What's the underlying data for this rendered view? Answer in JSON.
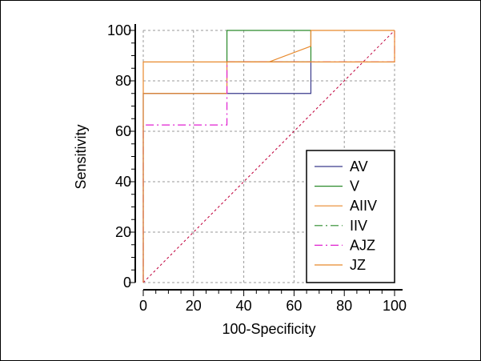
{
  "chart_data": {
    "type": "line",
    "title": "",
    "xlabel": "100-Specificity",
    "ylabel": "Sensitivity",
    "xlim": [
      0,
      100
    ],
    "ylim": [
      0,
      100
    ],
    "xticks": [
      "0",
      "20",
      "40",
      "60",
      "80",
      "100"
    ],
    "yticks": [
      "0",
      "20",
      "40",
      "60",
      "80",
      "100"
    ],
    "grid": true,
    "legend_position": "bottom-right",
    "reference_line": {
      "name": "chance-diagonal",
      "color": "#c0003c",
      "points": [
        [
          0,
          0
        ],
        [
          100,
          100
        ]
      ]
    },
    "series": [
      {
        "name": "AV",
        "color": "#3a3a8c",
        "dash": "solid",
        "points": [
          [
            0,
            0
          ],
          [
            0,
            75
          ],
          [
            33.3,
            75
          ],
          [
            66.7,
            75
          ],
          [
            66.7,
            87.5
          ]
        ]
      },
      {
        "name": "V",
        "color": "#2a8a2a",
        "dash": "solid",
        "points": [
          [
            33.3,
            87.5
          ],
          [
            33.3,
            100
          ],
          [
            66.7,
            100
          ],
          [
            66.7,
            87.5
          ],
          [
            33.3,
            87.5
          ]
        ]
      },
      {
        "name": "AIIV",
        "color": "#e8892c",
        "dash": "solid",
        "points": [
          [
            0,
            75
          ],
          [
            33.3,
            75
          ],
          [
            33.3,
            87.5
          ],
          [
            50,
            87.5
          ],
          [
            66.7,
            93.75
          ],
          [
            66.7,
            100
          ],
          [
            100,
            100
          ]
        ]
      },
      {
        "name": "IIV",
        "color": "#2a8a2a",
        "dash": "dashdot",
        "points": []
      },
      {
        "name": "AJZ",
        "color": "#e020d0",
        "dash": "dashdot",
        "points": [
          [
            0,
            0
          ],
          [
            0,
            62.5
          ],
          [
            33.3,
            62.5
          ],
          [
            33.3,
            87.5
          ],
          [
            100,
            87.5
          ],
          [
            100,
            100
          ]
        ]
      },
      {
        "name": "JZ",
        "color": "#e8892c",
        "dash": "solid",
        "points": [
          [
            0,
            0
          ],
          [
            0,
            87.5
          ],
          [
            100,
            87.5
          ],
          [
            100,
            100
          ]
        ]
      }
    ]
  }
}
